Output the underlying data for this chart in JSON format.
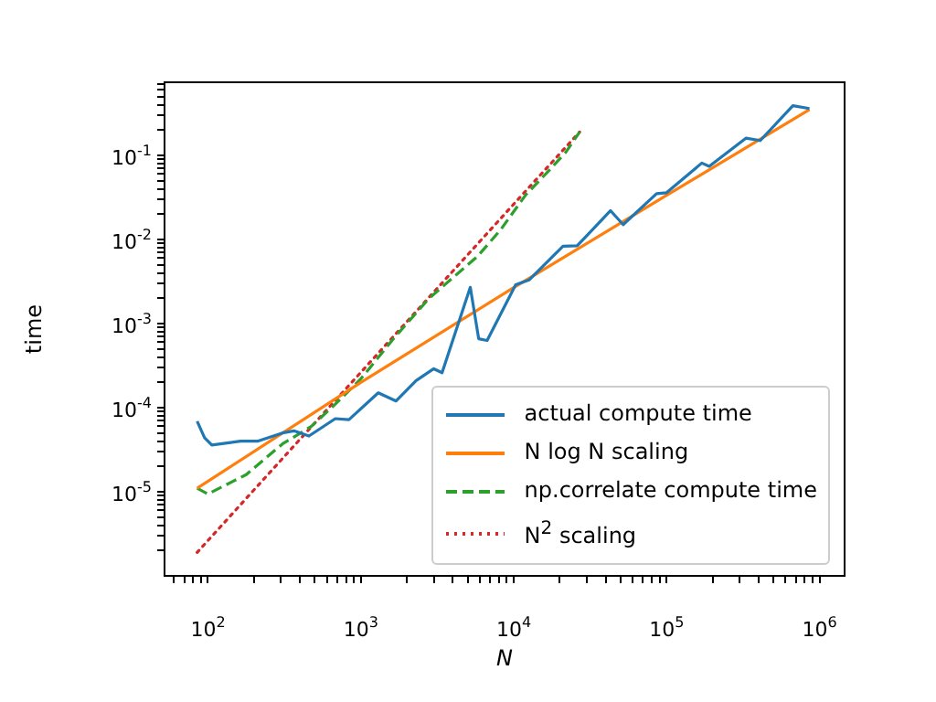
{
  "chart_data": {
    "type": "line",
    "xlabel": "N",
    "ylabel": "time",
    "log": "xy",
    "grid": false,
    "legend": "bottom right",
    "marker": "none",
    "xlim": [
      52,
      1460000
    ],
    "ylim": [
      1e-06,
      0.74
    ],
    "xticks": [
      {
        "value": 60,
        "label": null
      },
      {
        "value": 70,
        "label": null
      },
      {
        "value": 80,
        "label": null
      },
      {
        "value": 90,
        "label": null
      },
      {
        "value": 100,
        "label": "10$^{2}$"
      },
      {
        "value": 200,
        "label": null
      },
      {
        "value": 300,
        "label": null
      },
      {
        "value": 400,
        "label": null
      },
      {
        "value": 500,
        "label": null
      },
      {
        "value": 600,
        "label": null
      },
      {
        "value": 700,
        "label": null
      },
      {
        "value": 800,
        "label": null
      },
      {
        "value": 900,
        "label": null
      },
      {
        "value": 1000,
        "label": "10$^{3}$"
      },
      {
        "value": 2000,
        "label": null
      },
      {
        "value": 3000,
        "label": null
      },
      {
        "value": 4000,
        "label": null
      },
      {
        "value": 5000,
        "label": null
      },
      {
        "value": 6000,
        "label": null
      },
      {
        "value": 7000,
        "label": null
      },
      {
        "value": 8000,
        "label": null
      },
      {
        "value": 9000,
        "label": null
      },
      {
        "value": 10000,
        "label": "10$^{4}$"
      },
      {
        "value": 20000,
        "label": null
      },
      {
        "value": 30000,
        "label": null
      },
      {
        "value": 40000,
        "label": null
      },
      {
        "value": 50000,
        "label": null
      },
      {
        "value": 60000,
        "label": null
      },
      {
        "value": 70000,
        "label": null
      },
      {
        "value": 80000,
        "label": null
      },
      {
        "value": 90000,
        "label": null
      },
      {
        "value": 100000,
        "label": "10$^{5}$"
      },
      {
        "value": 200000,
        "label": null
      },
      {
        "value": 300000,
        "label": null
      },
      {
        "value": 400000,
        "label": null
      },
      {
        "value": 500000,
        "label": null
      },
      {
        "value": 600000,
        "label": null
      },
      {
        "value": 700000,
        "label": null
      },
      {
        "value": 800000,
        "label": null
      },
      {
        "value": 900000,
        "label": null
      },
      {
        "value": 1000000,
        "label": "10$^{6}$"
      }
    ],
    "yticks": [
      {
        "value": 2e-06,
        "label": null
      },
      {
        "value": 3e-06,
        "label": null
      },
      {
        "value": 4e-06,
        "label": null
      },
      {
        "value": 5e-06,
        "label": null
      },
      {
        "value": 6e-06,
        "label": null
      },
      {
        "value": 7e-06,
        "label": null
      },
      {
        "value": 8e-06,
        "label": null
      },
      {
        "value": 9e-06,
        "label": null
      },
      {
        "value": 1e-05,
        "label": "10$^{-5}$"
      },
      {
        "value": 2e-05,
        "label": null
      },
      {
        "value": 3e-05,
        "label": null
      },
      {
        "value": 4e-05,
        "label": null
      },
      {
        "value": 5e-05,
        "label": null
      },
      {
        "value": 6e-05,
        "label": null
      },
      {
        "value": 7e-05,
        "label": null
      },
      {
        "value": 8e-05,
        "label": null
      },
      {
        "value": 9e-05,
        "label": null
      },
      {
        "value": 0.0001,
        "label": "10$^{-4}$"
      },
      {
        "value": 0.0002,
        "label": null
      },
      {
        "value": 0.0003,
        "label": null
      },
      {
        "value": 0.0004,
        "label": null
      },
      {
        "value": 0.0005,
        "label": null
      },
      {
        "value": 0.0006,
        "label": null
      },
      {
        "value": 0.0007,
        "label": null
      },
      {
        "value": 0.0008,
        "label": null
      },
      {
        "value": 0.0009,
        "label": null
      },
      {
        "value": 0.001,
        "label": "10$^{-3}$"
      },
      {
        "value": 0.002,
        "label": null
      },
      {
        "value": 0.003,
        "label": null
      },
      {
        "value": 0.004,
        "label": null
      },
      {
        "value": 0.005,
        "label": null
      },
      {
        "value": 0.006,
        "label": null
      },
      {
        "value": 0.007,
        "label": null
      },
      {
        "value": 0.008,
        "label": null
      },
      {
        "value": 0.009,
        "label": null
      },
      {
        "value": 0.01,
        "label": "10$^{-2}$"
      },
      {
        "value": 0.02,
        "label": null
      },
      {
        "value": 0.03,
        "label": null
      },
      {
        "value": 0.04,
        "label": null
      },
      {
        "value": 0.05,
        "label": null
      },
      {
        "value": 0.06,
        "label": null
      },
      {
        "value": 0.07,
        "label": null
      },
      {
        "value": 0.08,
        "label": null
      },
      {
        "value": 0.09,
        "label": null
      },
      {
        "value": 0.1,
        "label": "10$^{-1}$"
      },
      {
        "value": 0.2,
        "label": null
      },
      {
        "value": 0.3,
        "label": null
      },
      {
        "value": 0.4,
        "label": null
      },
      {
        "value": 0.5,
        "label": null
      },
      {
        "value": 0.6,
        "label": null
      },
      {
        "value": 0.7,
        "label": null
      }
    ],
    "series": [
      {
        "name": "actual compute time",
        "color": "#1f77b4",
        "line_style": "solid",
        "x": [
          85,
          95,
          106,
          163,
          213,
          307,
          365,
          458,
          681,
          836,
          1300,
          1700,
          2300,
          3000,
          3400,
          5200,
          5900,
          6700,
          10300,
          12600,
          21000,
          26000,
          43000,
          52000,
          86000,
          100000,
          170000,
          190000,
          330000,
          410000,
          670000,
          860000
        ],
        "values": [
          6.9e-05,
          4.4e-05,
          3.6e-05,
          4e-05,
          4e-05,
          5e-05,
          5.3e-05,
          4.6e-05,
          7.4e-05,
          7.2e-05,
          0.00015,
          0.00012,
          0.00021,
          0.00029,
          0.00026,
          0.0027,
          0.00066,
          0.00063,
          0.0029,
          0.0033,
          0.0083,
          0.0084,
          0.022,
          0.015,
          0.035,
          0.036,
          0.081,
          0.074,
          0.16,
          0.15,
          0.39,
          0.36
        ]
      },
      {
        "name": "N log N scaling",
        "color": "#ff7f0e",
        "line_style": "solid",
        "x": [
          85,
          1000,
          10000,
          100000,
          860000
        ],
        "values": [
          1.1e-05,
          0.0002,
          0.00268,
          0.0335,
          0.35
        ]
      },
      {
        "name": "np.correlate compute time",
        "color": "#2ca02c",
        "line_style": "dashed",
        "x": [
          85,
          100,
          178,
          307,
          475,
          681,
          1000,
          1600,
          2800,
          5800,
          8200,
          12000,
          17000,
          22000,
          27000
        ],
        "values": [
          1.1e-05,
          9.4e-06,
          1.6e-05,
          3.7e-05,
          6e-05,
          0.00011,
          0.00022,
          0.00063,
          0.002,
          0.0063,
          0.013,
          0.034,
          0.066,
          0.11,
          0.19
        ]
      },
      {
        "name": "N$^{2}$ scaling",
        "color": "#d62728",
        "line_style": "dotted",
        "x": [
          85,
          1000,
          10000,
          27000
        ],
        "values": [
          1.9e-06,
          0.000263,
          0.0263,
          0.19
        ]
      }
    ]
  }
}
